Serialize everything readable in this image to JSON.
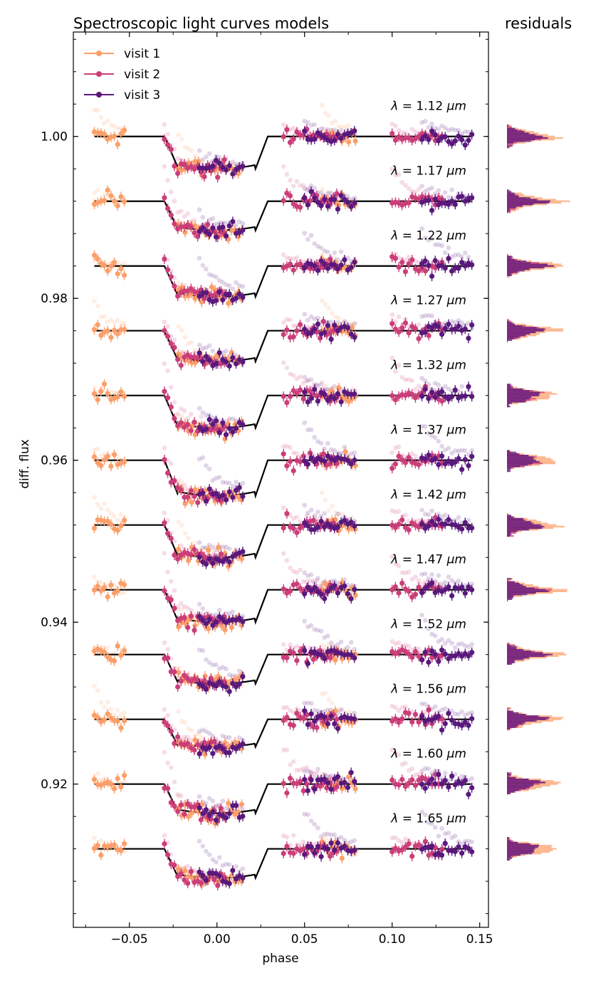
{
  "chart_data": {
    "type": "scatter",
    "title": "Spectroscopic light curves models",
    "residuals_title": "residuals",
    "xlabel": "phase",
    "ylabel": "diff. flux",
    "xlim": [
      -0.082,
      0.155
    ],
    "ylim": [
      0.9023,
      1.0129
    ],
    "x_ticks": [
      -0.05,
      0.0,
      0.05,
      0.1,
      0.15
    ],
    "x_tick_labels": [
      "−0.05",
      "0.00",
      "0.05",
      "0.10",
      "0.15"
    ],
    "y_ticks": [
      0.92,
      0.94,
      0.96,
      0.98,
      1.0
    ],
    "y_tick_labels": [
      "0.92",
      "0.94",
      "0.96",
      "0.98",
      "1.00"
    ],
    "grid": false,
    "legend_position": "top-left",
    "series": [
      {
        "name": "visit 1",
        "color": "#fb9f6a"
      },
      {
        "name": "visit 2",
        "color": "#cb3e79"
      },
      {
        "name": "visit 3",
        "color": "#5a187d"
      }
    ],
    "model_color": "#000000",
    "transit": {
      "t1": -0.03,
      "t2": -0.022,
      "t3": 0.022,
      "t4": 0.029
    },
    "visit_phase_ranges": [
      {
        "visit": "visit 1",
        "segments": [
          [
            -0.07,
            -0.052
          ],
          [
            -0.022,
            0.015
          ],
          [
            0.06,
            0.08
          ]
        ]
      },
      {
        "visit": "visit 2",
        "segments": [
          [
            -0.03,
            0.005
          ],
          [
            0.038,
            0.07
          ],
          [
            0.1,
            0.13
          ]
        ]
      },
      {
        "visit": "visit 3",
        "segments": [
          [
            -0.01,
            0.016
          ],
          [
            0.05,
            0.08
          ],
          [
            0.117,
            0.147
          ]
        ]
      }
    ],
    "spectroscopic_channels": [
      {
        "wavelength": "1.12",
        "baseline": 1.0,
        "depth": 0.004
      },
      {
        "wavelength": "1.17",
        "baseline": 0.992,
        "depth": 0.0036
      },
      {
        "wavelength": "1.22",
        "baseline": 0.984,
        "depth": 0.0038
      },
      {
        "wavelength": "1.27",
        "baseline": 0.976,
        "depth": 0.0038
      },
      {
        "wavelength": "1.32",
        "baseline": 0.968,
        "depth": 0.004
      },
      {
        "wavelength": "1.37",
        "baseline": 0.96,
        "depth": 0.0044
      },
      {
        "wavelength": "1.42",
        "baseline": 0.952,
        "depth": 0.004
      },
      {
        "wavelength": "1.47",
        "baseline": 0.944,
        "depth": 0.004
      },
      {
        "wavelength": "1.52",
        "baseline": 0.936,
        "depth": 0.0036
      },
      {
        "wavelength": "1.56",
        "baseline": 0.928,
        "depth": 0.0034
      },
      {
        "wavelength": "1.60",
        "baseline": 0.92,
        "depth": 0.0036
      },
      {
        "wavelength": "1.65",
        "baseline": 0.912,
        "depth": 0.0036
      }
    ],
    "wavelength_unit": "μm",
    "wavelength_symbol": "λ"
  }
}
